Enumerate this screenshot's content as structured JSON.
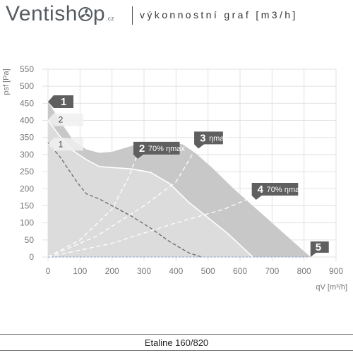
{
  "header": {
    "logo_text_left": "Ventish",
    "logo_text_right": "p",
    "logo_suffix": ".cz",
    "title": "výkonnostní graf [m3/h]"
  },
  "footer": {
    "model": "Etaline 160/820"
  },
  "chart_data": {
    "type": "area",
    "xlabel": "qV [m³/h]",
    "ylabel": "psf [Pa]",
    "xlim": [
      0,
      900
    ],
    "ylim": [
      0,
      550
    ],
    "xticks": [
      0,
      100,
      200,
      300,
      400,
      500,
      600,
      700,
      800,
      900
    ],
    "yticks": [
      0,
      50,
      100,
      150,
      200,
      250,
      300,
      350,
      400,
      450,
      500,
      550
    ],
    "grid": true,
    "curves": [
      {
        "id": "1",
        "label": "1",
        "x": [
          0,
          40,
          90,
          120,
          160,
          200,
          260,
          320,
          380,
          440,
          480
        ],
        "y": [
          335,
          290,
          220,
          185,
          170,
          150,
          120,
          85,
          45,
          12,
          0
        ]
      },
      {
        "id": "2",
        "label": "2",
        "x": [
          0,
          40,
          80,
          120,
          160,
          200,
          260,
          320,
          380,
          440,
          500,
          560,
          600,
          640
        ],
        "y": [
          400,
          350,
          310,
          285,
          265,
          262,
          258,
          248,
          215,
          160,
          115,
          70,
          35,
          0
        ]
      },
      {
        "id": "max",
        "label": "1",
        "x": [
          0,
          40,
          80,
          120,
          160,
          200,
          260,
          320,
          380,
          420,
          460,
          520,
          580,
          640,
          700,
          760,
          820
        ],
        "y": [
          455,
          395,
          340,
          315,
          305,
          308,
          325,
          335,
          337,
          330,
          305,
          255,
          200,
          150,
          100,
          50,
          0
        ]
      }
    ],
    "efficiency_lines": [
      {
        "label": "2",
        "text": "70% ηmax",
        "x": [
          0,
          100,
          200,
          250,
          280
        ],
        "y": [
          0,
          50,
          140,
          230,
          300
        ]
      },
      {
        "label": "3",
        "text": "ηmax",
        "x": [
          0,
          150,
          300,
          400,
          470
        ],
        "y": [
          0,
          60,
          150,
          220,
          330
        ]
      },
      {
        "label": "4",
        "text": "70% ηmax",
        "x": [
          0,
          200,
          400,
          550,
          650
        ],
        "y": [
          0,
          40,
          100,
          140,
          180
        ]
      }
    ],
    "curve_label_points": [
      {
        "text": "1",
        "x": 35,
        "y": 455
      },
      {
        "text": "2",
        "x": 35,
        "y": 402
      },
      {
        "text": "1",
        "x": 35,
        "y": 330
      }
    ],
    "marker_5": {
      "text": "5",
      "x": 820,
      "y": 0
    },
    "colors": {
      "outer_area": "#c8c8c8",
      "inner_area": "#dcdcdc",
      "axis_text": "#777777",
      "label_box": "#5f5f5f",
      "line_white": "#ffffff",
      "dash_dark": "#6a6a6a",
      "base_line": "#9ab3d0"
    }
  }
}
